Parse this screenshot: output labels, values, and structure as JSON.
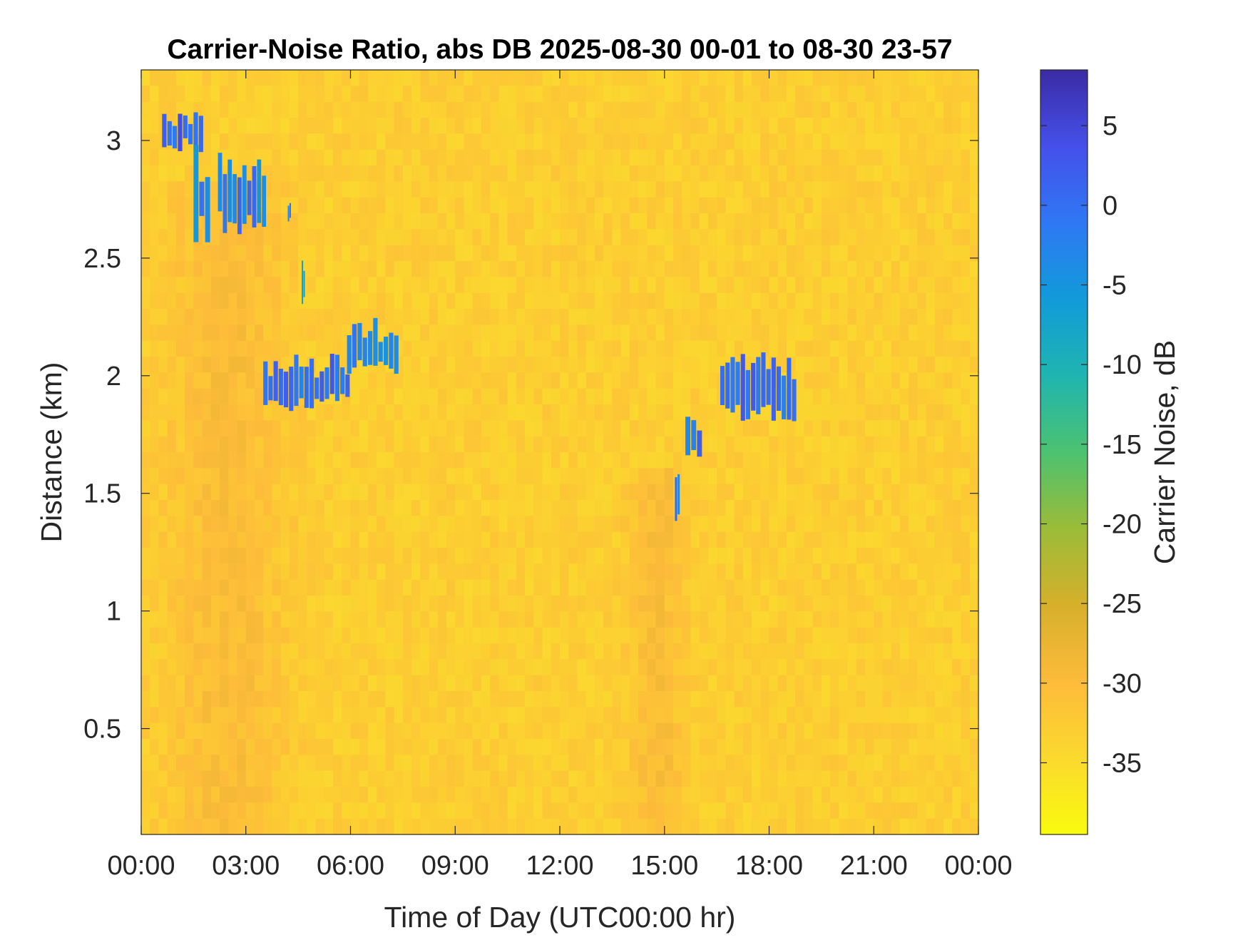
{
  "chart_data": {
    "type": "heatmap",
    "title": "Carrier-Noise Ratio, abs DB 2025-08-30 00-01 to 08-30 23-57",
    "xlabel": "Time of Day (UTC00:00 hr)",
    "ylabel": "Distance (km)",
    "xlim": [
      0,
      24
    ],
    "ylim": [
      0.05,
      3.3
    ],
    "x_ticks": [
      0,
      3,
      6,
      9,
      12,
      15,
      18,
      21,
      24
    ],
    "x_tick_labels": [
      "00:00",
      "03:00",
      "06:00",
      "09:00",
      "12:00",
      "15:00",
      "18:00",
      "21:00",
      "00:00"
    ],
    "y_ticks": [
      0.5,
      1,
      1.5,
      2,
      2.5,
      3
    ],
    "y_tick_labels": [
      "0.5",
      "1",
      "1.5",
      "2",
      "2.5",
      "3"
    ],
    "colorbar": {
      "label": "Carrier Noise, dB",
      "range": [
        -39.5,
        8.5
      ],
      "ticks": [
        5,
        0,
        -5,
        -10,
        -15,
        -20,
        -25,
        -30,
        -35
      ],
      "tick_labels": [
        "5",
        "0",
        "-5",
        "-10",
        "-15",
        "-20",
        "-25",
        "-30",
        "-35"
      ],
      "colormap": "parula"
    },
    "background_db": -33,
    "features": [
      {
        "hour_start": 0.6,
        "hour_end": 1.8,
        "km_low": 2.95,
        "km_high": 3.15,
        "db": 4
      },
      {
        "hour_start": 1.5,
        "hour_end": 2.0,
        "km_low": 2.55,
        "km_high": 3.0,
        "db": 0
      },
      {
        "hour_start": 2.2,
        "hour_end": 3.6,
        "km_low": 2.6,
        "km_high": 2.95,
        "db": 1
      },
      {
        "hour_start": 4.2,
        "hour_end": 4.3,
        "km_low": 2.65,
        "km_high": 2.75,
        "db": 0
      },
      {
        "hour_start": 4.6,
        "hour_end": 4.7,
        "km_low": 2.3,
        "km_high": 2.5,
        "db": -2
      },
      {
        "hour_start": 3.5,
        "hour_end": 6.0,
        "km_low": 1.85,
        "km_high": 2.1,
        "db": 3
      },
      {
        "hour_start": 5.9,
        "hour_end": 7.4,
        "km_low": 2.0,
        "km_high": 2.25,
        "db": 0
      },
      {
        "hour_start": 15.3,
        "hour_end": 15.45,
        "km_low": 1.35,
        "km_high": 1.6,
        "db": 2
      },
      {
        "hour_start": 15.6,
        "hour_end": 16.1,
        "km_low": 1.65,
        "km_high": 1.85,
        "db": 2
      },
      {
        "hour_start": 16.6,
        "hour_end": 18.8,
        "km_low": 1.8,
        "km_high": 2.1,
        "db": 3
      }
    ],
    "grid": false
  }
}
